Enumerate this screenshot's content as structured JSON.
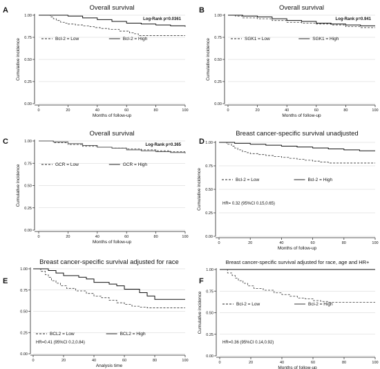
{
  "chart_data": [
    {
      "panel": "A",
      "type": "line",
      "title": "Overall survival",
      "xlabel": "Months of follow-up",
      "ylabel": "Cumulative incidence",
      "annotation": "Log-Rank p=0.0361",
      "xlim": [
        0,
        100
      ],
      "ylim": [
        0,
        1
      ],
      "xticks": [
        "0",
        "20",
        "40",
        "60",
        "80",
        "100"
      ],
      "yticks": [
        "0.00",
        "0.25",
        "0.50",
        "0.75",
        "1.00"
      ],
      "legend_position": "upper-left",
      "series": [
        {
          "name": "Bcl-2 = Low",
          "style": "dashed",
          "x": [
            0,
            5,
            8,
            10,
            12,
            15,
            18,
            20,
            25,
            30,
            35,
            38,
            42,
            48,
            55,
            62,
            65,
            68,
            100
          ],
          "y": [
            1.0,
            1.0,
            0.98,
            0.96,
            0.94,
            0.92,
            0.91,
            0.9,
            0.89,
            0.88,
            0.87,
            0.86,
            0.85,
            0.84,
            0.82,
            0.8,
            0.79,
            0.77,
            0.77
          ]
        },
        {
          "name": "Bcl-2 = High",
          "style": "solid",
          "x": [
            0,
            10,
            20,
            30,
            40,
            50,
            60,
            70,
            80,
            90,
            100
          ],
          "y": [
            1.0,
            1.0,
            0.99,
            0.97,
            0.95,
            0.93,
            0.91,
            0.9,
            0.89,
            0.88,
            0.87
          ]
        }
      ]
    },
    {
      "panel": "B",
      "type": "line",
      "title": "Overall survival",
      "xlabel": "Months of follow-up",
      "ylabel": "Cumulative incidence",
      "annotation": "Log-Rank p=0.941",
      "xlim": [
        0,
        100
      ],
      "ylim": [
        0,
        1
      ],
      "xticks": [
        "0",
        "20",
        "40",
        "60",
        "80",
        "100"
      ],
      "yticks": [
        "0.00",
        "0.25",
        "0.50",
        "0.75",
        "1.00"
      ],
      "legend_position": "upper-left",
      "series": [
        {
          "name": "SGK1 = Low",
          "style": "dashed",
          "x": [
            0,
            5,
            10,
            20,
            30,
            40,
            50,
            60,
            70,
            80,
            90,
            100
          ],
          "y": [
            1.0,
            0.99,
            0.97,
            0.96,
            0.94,
            0.92,
            0.91,
            0.9,
            0.89,
            0.87,
            0.86,
            0.86
          ]
        },
        {
          "name": "SGK1 = High",
          "style": "solid",
          "x": [
            0,
            10,
            20,
            30,
            40,
            50,
            60,
            70,
            80,
            90,
            100
          ],
          "y": [
            1.0,
            0.99,
            0.98,
            0.96,
            0.94,
            0.93,
            0.91,
            0.9,
            0.89,
            0.88,
            0.88
          ]
        }
      ]
    },
    {
      "panel": "C",
      "type": "line",
      "title": "Overall survival",
      "xlabel": "Months of follow-up",
      "ylabel": "Cumulative incidence",
      "annotation": "Log-Rank p=0.365",
      "xlim": [
        0,
        100
      ],
      "ylim": [
        0,
        1
      ],
      "xticks": [
        "0",
        "20",
        "40",
        "60",
        "80",
        "100"
      ],
      "yticks": [
        "0.00",
        "0.25",
        "0.50",
        "0.75",
        "1.00"
      ],
      "legend_position": "upper-left",
      "series": [
        {
          "name": "GCR = Low",
          "style": "dashed",
          "x": [
            0,
            10,
            20,
            30,
            40,
            50,
            60,
            70,
            80,
            90,
            100
          ],
          "y": [
            1.0,
            0.98,
            0.96,
            0.94,
            0.93,
            0.92,
            0.91,
            0.9,
            0.89,
            0.88,
            0.88
          ]
        },
        {
          "name": "GCR = High",
          "style": "solid",
          "x": [
            0,
            10,
            20,
            30,
            40,
            50,
            60,
            70,
            80,
            90,
            100
          ],
          "y": [
            1.0,
            0.99,
            0.97,
            0.95,
            0.93,
            0.92,
            0.9,
            0.89,
            0.88,
            0.87,
            0.86
          ]
        }
      ]
    },
    {
      "panel": "D",
      "type": "line",
      "title": "Breast cancer-specific survival unadjusted",
      "xlabel": "Months of follow-up",
      "ylabel": "Cumulative incidence",
      "annotation": "HR= 0.32 (95%CI 0.15,0.65)",
      "xlim": [
        0,
        100
      ],
      "ylim": [
        0,
        1
      ],
      "xticks": [
        "0",
        "20",
        "40",
        "60",
        "80",
        "100"
      ],
      "yticks": [
        "0.00",
        "0.25",
        "0.50",
        "0.75",
        "1.00"
      ],
      "legend_position": "upper-left",
      "series": [
        {
          "name": "Bcl-2 = Low",
          "style": "dashed",
          "x": [
            0,
            5,
            8,
            10,
            12,
            15,
            18,
            20,
            25,
            30,
            35,
            40,
            45,
            50,
            55,
            60,
            65,
            70,
            100
          ],
          "y": [
            1.0,
            0.98,
            0.96,
            0.94,
            0.92,
            0.9,
            0.89,
            0.88,
            0.87,
            0.86,
            0.85,
            0.84,
            0.83,
            0.82,
            0.81,
            0.8,
            0.79,
            0.78,
            0.78
          ]
        },
        {
          "name": "Bcl-2 = High",
          "style": "solid",
          "x": [
            0,
            10,
            20,
            30,
            40,
            50,
            60,
            70,
            80,
            90,
            100
          ],
          "y": [
            1.0,
            0.99,
            0.98,
            0.97,
            0.96,
            0.95,
            0.94,
            0.93,
            0.92,
            0.91,
            0.91
          ]
        }
      ]
    },
    {
      "panel": "E",
      "type": "line",
      "title": "Breast cancer-specific survival adjusted for race",
      "xlabel": "Analysis time",
      "ylabel": "",
      "annotation": "HR=0.41 (95%CI 0.2,0.84)",
      "xlim": [
        0,
        100
      ],
      "ylim": [
        0,
        1
      ],
      "xticks": [
        "0",
        "20",
        "40",
        "60",
        "80",
        "100"
      ],
      "yticks": [
        "0.00",
        "0.25",
        "0.50",
        "0.75",
        "1.00"
      ],
      "legend_position": "upper-left",
      "series": [
        {
          "name": "BCL2 = Low",
          "style": "dashed",
          "x": [
            0,
            5,
            8,
            10,
            12,
            15,
            18,
            22,
            28,
            35,
            40,
            45,
            50,
            55,
            60,
            65,
            70,
            75,
            100
          ],
          "y": [
            1.0,
            0.97,
            0.93,
            0.9,
            0.86,
            0.83,
            0.8,
            0.77,
            0.74,
            0.71,
            0.68,
            0.66,
            0.63,
            0.6,
            0.58,
            0.56,
            0.55,
            0.54,
            0.54
          ]
        },
        {
          "name": "BCL2 = High",
          "style": "solid",
          "x": [
            0,
            10,
            15,
            20,
            30,
            35,
            40,
            50,
            55,
            60,
            70,
            75,
            80,
            100
          ],
          "y": [
            1.0,
            0.98,
            0.95,
            0.92,
            0.9,
            0.88,
            0.84,
            0.82,
            0.8,
            0.76,
            0.72,
            0.68,
            0.64,
            0.64
          ]
        }
      ]
    },
    {
      "panel": "F",
      "type": "line",
      "title": "Breast cancer-specific survival adjusted for race, age and HR+",
      "xlabel": "Months of follow-up",
      "ylabel": "Cumulative incidence",
      "annotation": "HR=0.36 (95%CI 0.14,0.92)",
      "xlim": [
        0,
        100
      ],
      "ylim": [
        0,
        1
      ],
      "xticks": [
        "0",
        "20",
        "40",
        "60",
        "80",
        "100"
      ],
      "yticks": [
        "0.00",
        "0.25",
        "0.50",
        "0.75",
        "1.00"
      ],
      "legend_position": "upper-left",
      "series": [
        {
          "name": "Bcl-2 = Low",
          "style": "dashed",
          "x": [
            0,
            5,
            8,
            10,
            12,
            15,
            18,
            22,
            28,
            35,
            40,
            45,
            50,
            55,
            60,
            65,
            70,
            100
          ],
          "y": [
            1.0,
            0.96,
            0.93,
            0.9,
            0.87,
            0.84,
            0.81,
            0.78,
            0.76,
            0.73,
            0.71,
            0.69,
            0.67,
            0.66,
            0.64,
            0.63,
            0.62,
            0.62
          ]
        },
        {
          "name": "Bcl-2 = High",
          "style": "solid",
          "x": [
            0,
            100
          ],
          "y": [
            1.0,
            1.0
          ]
        }
      ]
    }
  ]
}
